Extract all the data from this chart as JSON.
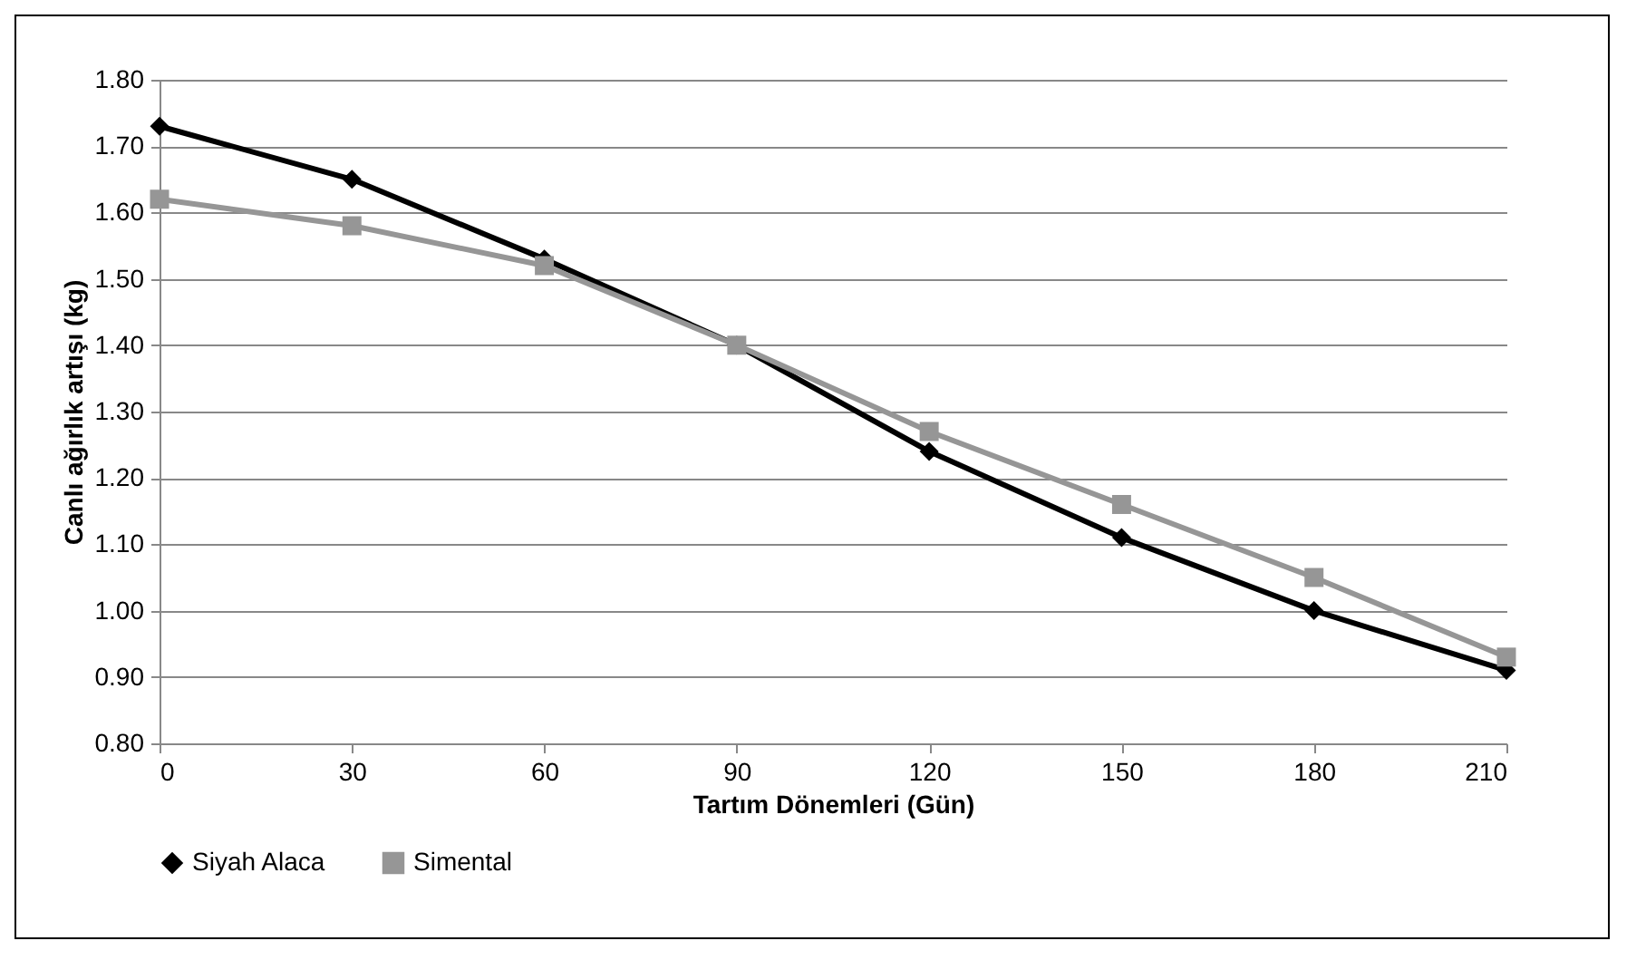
{
  "chart_data": {
    "type": "line",
    "xlabel": "Tartım Dönemleri (Gün)",
    "ylabel": "Canlı ağırlık artışı (kg)",
    "x": [
      0,
      30,
      60,
      90,
      120,
      150,
      180,
      210
    ],
    "xlim": [
      0,
      210
    ],
    "xticks": [
      0,
      30,
      60,
      90,
      120,
      150,
      180,
      210
    ],
    "ylim": [
      0.8,
      1.8
    ],
    "yticks": [
      {
        "value": 0.8,
        "label": "0.80"
      },
      {
        "value": 0.9,
        "label": "0.90"
      },
      {
        "value": 1.0,
        "label": "1.00"
      },
      {
        "value": 1.1,
        "label": "1.10"
      },
      {
        "value": 1.2,
        "label": "1.20"
      },
      {
        "value": 1.3,
        "label": "1.30"
      },
      {
        "value": 1.4,
        "label": "1.40"
      },
      {
        "value": 1.5,
        "label": "1.50"
      },
      {
        "value": 1.6,
        "label": "1.60"
      },
      {
        "value": 1.7,
        "label": "1.70"
      },
      {
        "value": 1.8,
        "label": "1.80"
      }
    ],
    "grid": "y",
    "legend": "bottom",
    "line_style": "solid",
    "series": [
      {
        "name": "Siyah Alaca",
        "color": "#000000",
        "marker": "diamond",
        "values": [
          1.73,
          1.65,
          1.53,
          1.4,
          1.24,
          1.11,
          1.0,
          0.91
        ]
      },
      {
        "name": "Simental",
        "color": "#969696",
        "marker": "square",
        "values": [
          1.62,
          1.58,
          1.52,
          1.4,
          1.27,
          1.16,
          1.05,
          0.93
        ]
      }
    ]
  }
}
